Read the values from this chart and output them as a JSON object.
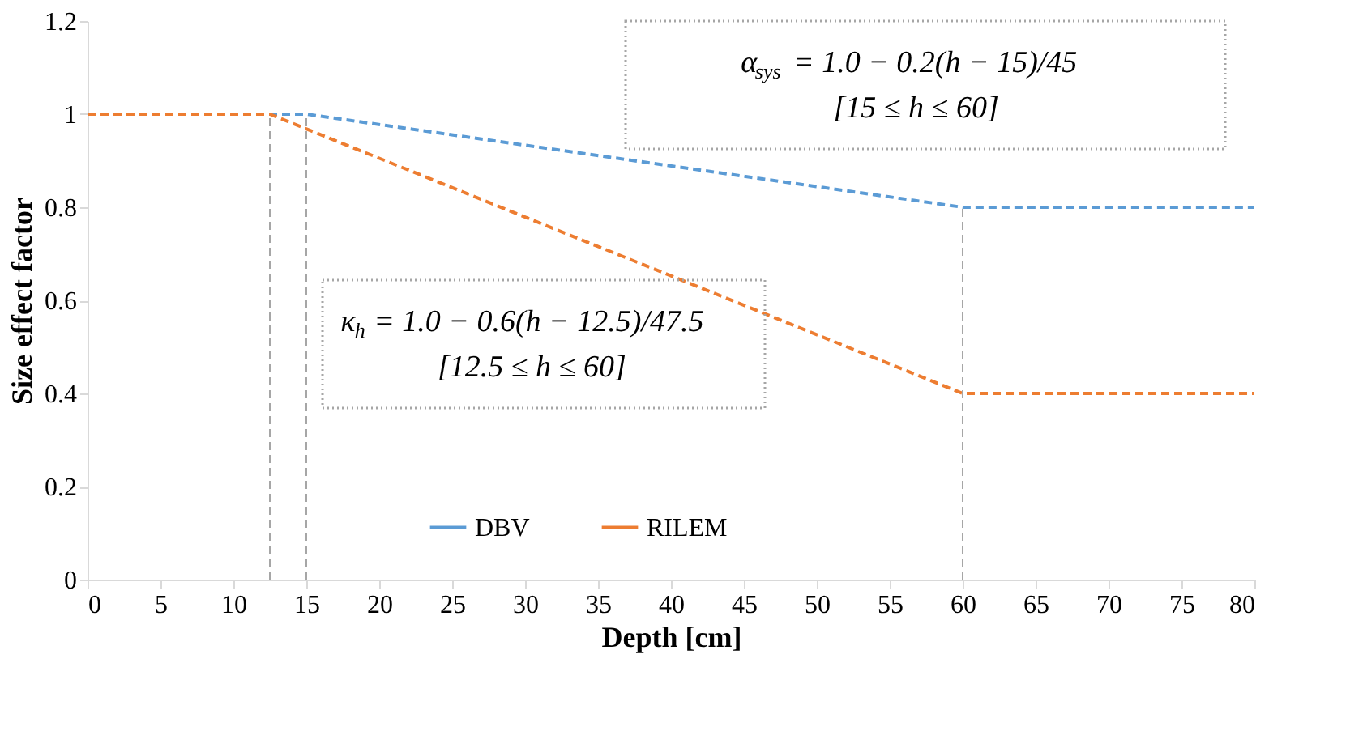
{
  "chart_data": {
    "type": "line",
    "xlabel": "Depth [cm]",
    "ylabel": "Size effect factor",
    "xlim": [
      0,
      80
    ],
    "xticks": [
      0,
      5,
      10,
      15,
      20,
      25,
      30,
      35,
      40,
      45,
      50,
      55,
      60,
      65,
      70,
      75,
      80
    ],
    "ylim": [
      0,
      1.2
    ],
    "yticks": [
      0,
      {
        "value": 0.2,
        "label": "0.2"
      },
      {
        "value": 0.4,
        "label": "0.4"
      },
      {
        "value": 0.6,
        "label": "0.6"
      },
      {
        "value": 0.8,
        "label": "0.8"
      },
      1,
      {
        "value": 1.2,
        "label": "1.2"
      }
    ],
    "grid": false,
    "legend": "bottom",
    "marker": "none",
    "series": [
      {
        "name": "DBV",
        "color": "#5b9bd5",
        "line_style": "dashed",
        "x": [
          0,
          15,
          60,
          80
        ],
        "values": [
          1,
          1,
          0.8,
          0.8
        ]
      },
      {
        "name": "RILEM",
        "color": "#ed7d31",
        "line_style": "dashed",
        "x": [
          0,
          12.5,
          60,
          80
        ],
        "values": [
          1,
          1,
          0.4,
          0.4
        ]
      }
    ],
    "ref_lines": [
      {
        "axis": "x",
        "value": 12.5,
        "color": "#a6a6a6",
        "line_style": "dashed"
      },
      {
        "axis": "x",
        "value": 15,
        "color": "#a6a6a6",
        "line_style": "dashed"
      },
      {
        "axis": "x",
        "value": 60,
        "color": "#a6a6a6",
        "line_style": "dashed"
      }
    ],
    "annotations": [
      "α$_{sys}$ = 1.0 − 0.2(h − 15)/45\n[15 ≤ h ≤ 60]",
      "κ$_{h}$ = 1.0 − 0.6(h − 12.5)/47.5\n[12.5 ≤ h ≤ 60]"
    ]
  }
}
